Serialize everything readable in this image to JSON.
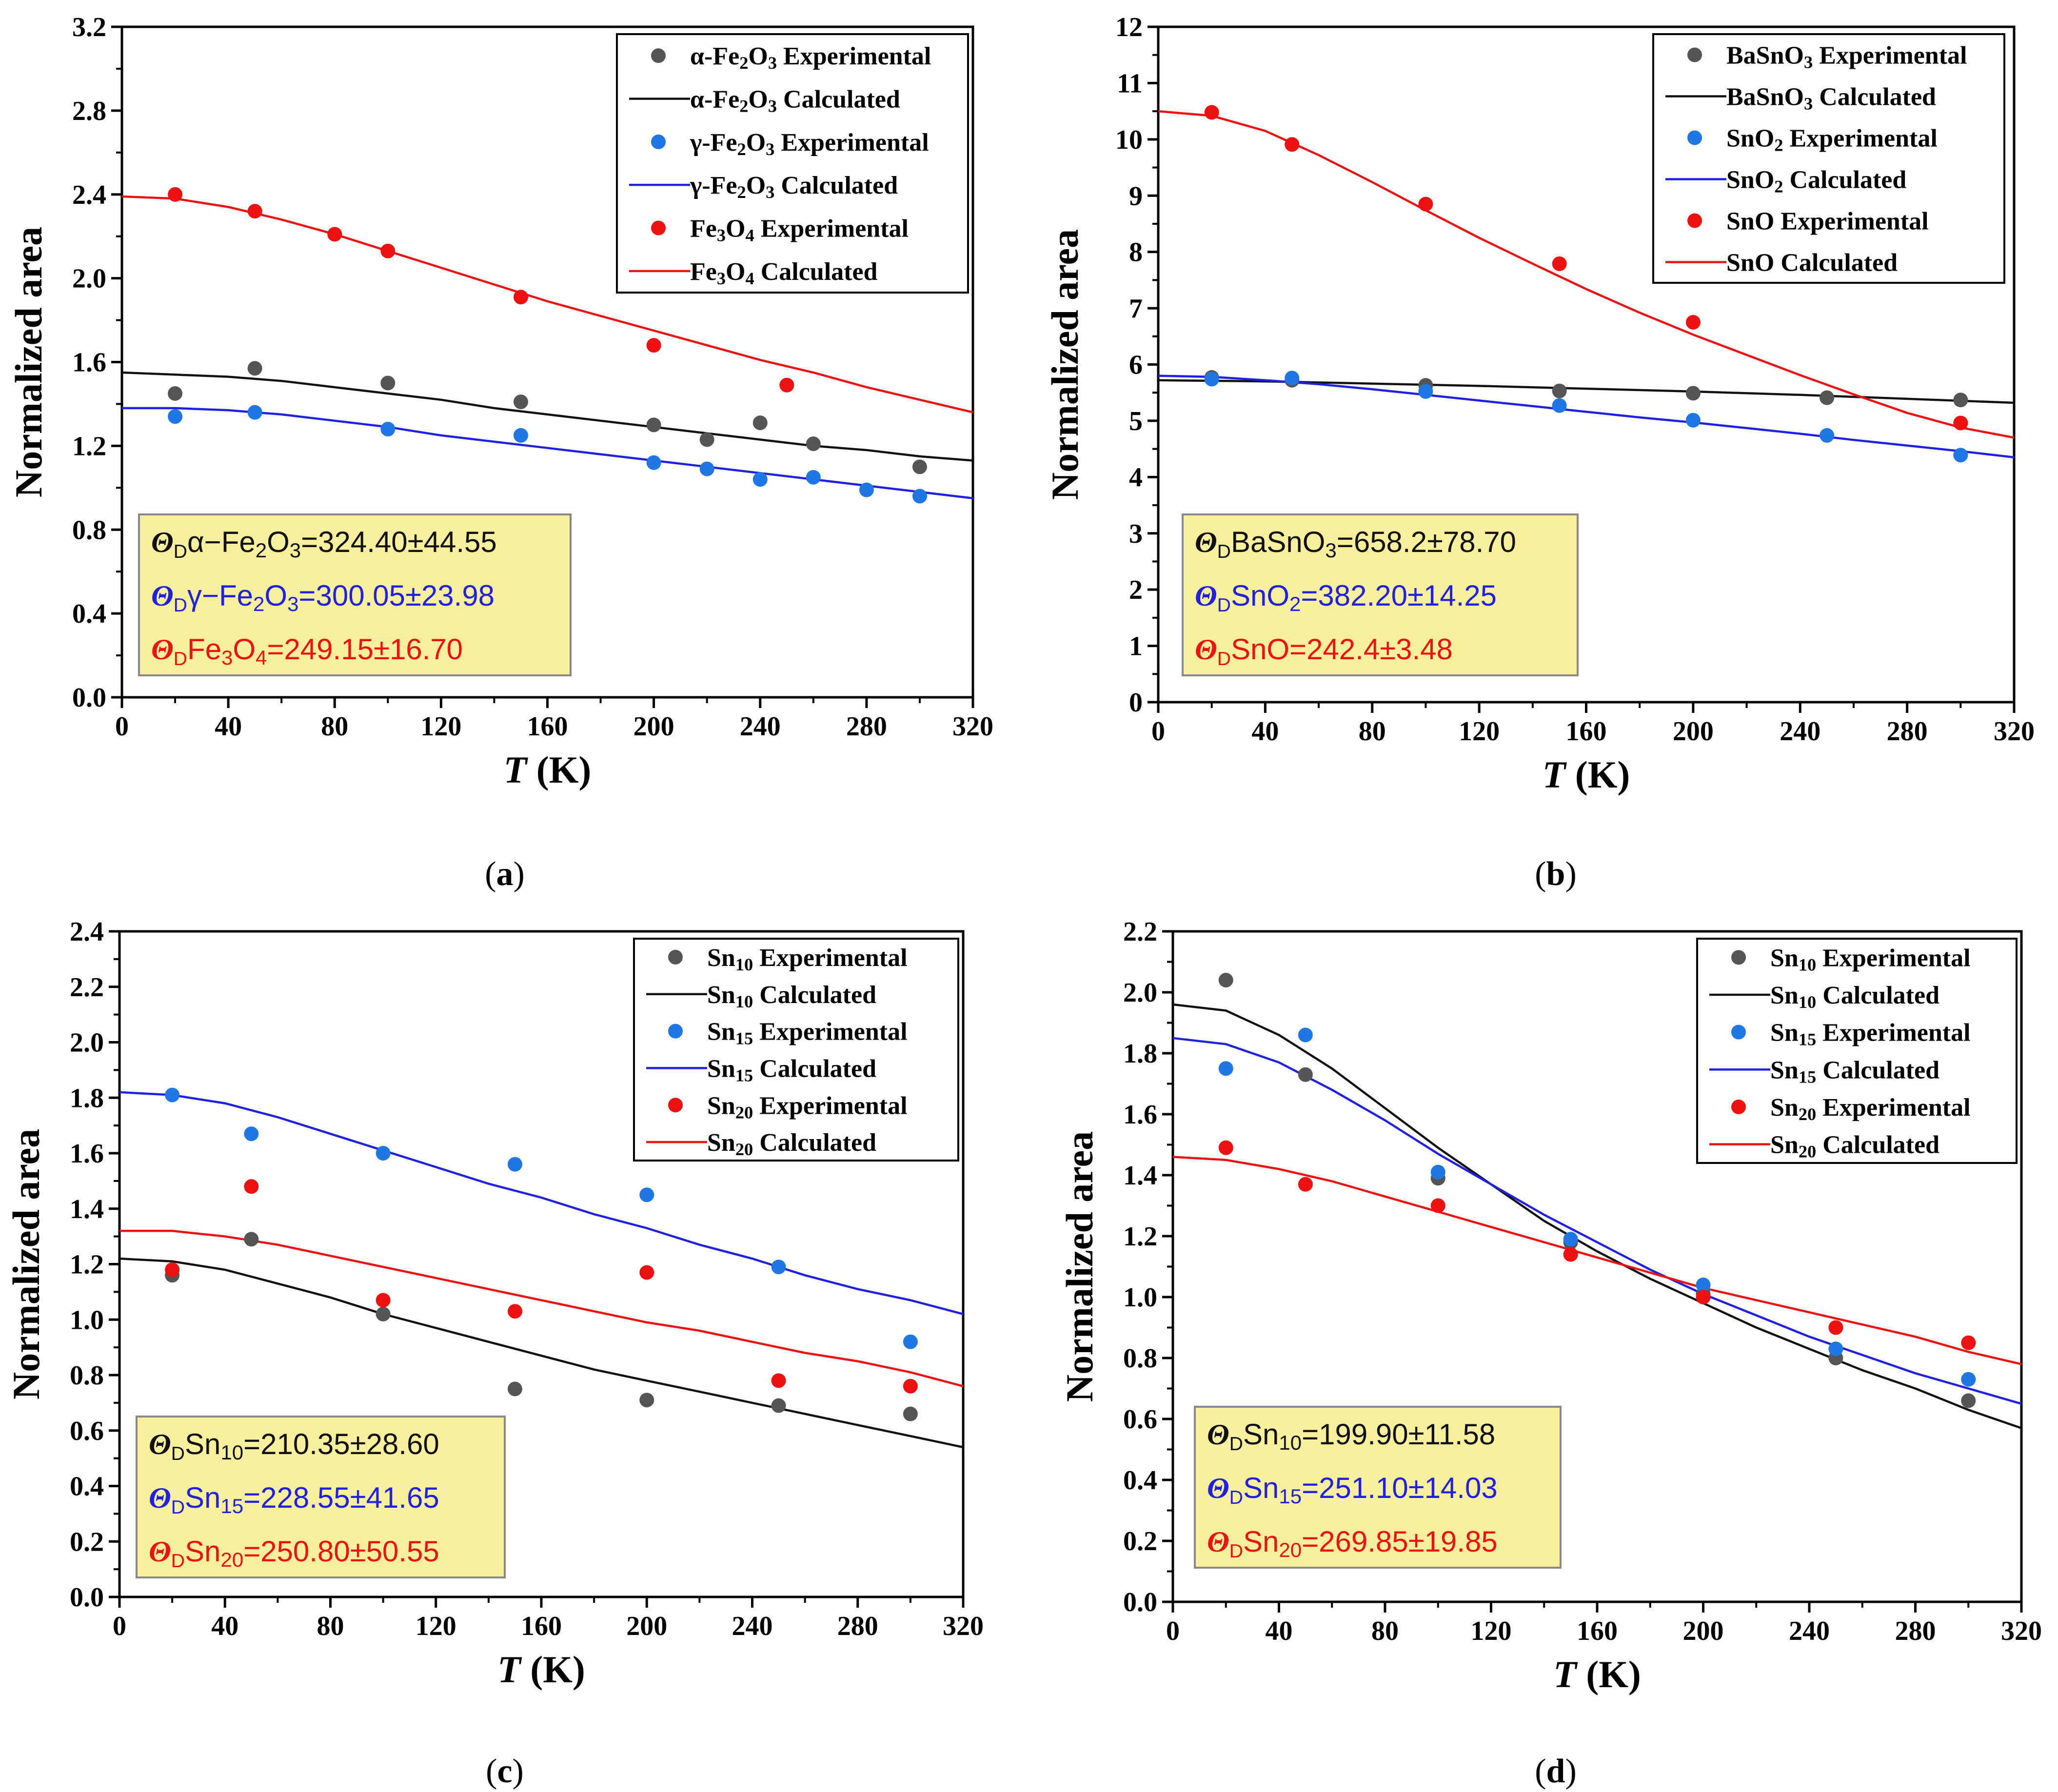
{
  "figure": {
    "panels": [
      "a",
      "b",
      "c",
      "d"
    ]
  },
  "colors": {
    "black_series": "#555555",
    "black_line": "#111111",
    "blue": "#1f77e4",
    "blue_line": "#1f1fe6",
    "red": "#ee1111",
    "annotation_bg": "#f7ef9c"
  },
  "chart_data": [
    {
      "type": "scatter",
      "panel_label": "(a)",
      "xlabel": "T (K)",
      "ylabel": "Normalized area",
      "xlim": [
        0,
        320
      ],
      "ylim": [
        0.0,
        3.2
      ],
      "xticks": [
        "0",
        "40",
        "80",
        "120",
        "160",
        "200",
        "240",
        "280",
        "320"
      ],
      "yticks": [
        "0.0",
        "0.4",
        "0.8",
        "1.2",
        "1.6",
        "2.0",
        "2.4",
        "2.8",
        "3.2"
      ],
      "legend": [
        "α-Fe2O3 Experimental",
        "α-Fe2O3 Calculated",
        "γ-Fe2O3 Experimental",
        "γ-Fe2O3 Calculated",
        "Fe3O4  Experimental",
        "Fe3O4 Calculated"
      ],
      "series": [
        {
          "name": "α-Fe2O3 Experimental",
          "color": "black",
          "x": [
            20,
            50,
            100,
            150,
            200,
            220,
            240,
            260,
            300
          ],
          "y": [
            1.45,
            1.57,
            1.5,
            1.41,
            1.3,
            1.23,
            1.31,
            1.21,
            1.1
          ]
        },
        {
          "name": "α-Fe2O3 Calculated",
          "color": "black",
          "x": [
            0,
            20,
            40,
            60,
            80,
            100,
            120,
            140,
            160,
            180,
            200,
            220,
            240,
            260,
            280,
            300,
            320
          ],
          "y": [
            1.55,
            1.54,
            1.53,
            1.51,
            1.48,
            1.45,
            1.42,
            1.38,
            1.35,
            1.32,
            1.29,
            1.26,
            1.23,
            1.2,
            1.18,
            1.15,
            1.13
          ]
        },
        {
          "name": "γ-Fe2O3 Experimental",
          "color": "blue",
          "x": [
            20,
            50,
            100,
            150,
            200,
            220,
            240,
            260,
            280,
            300
          ],
          "y": [
            1.34,
            1.36,
            1.28,
            1.25,
            1.12,
            1.09,
            1.04,
            1.05,
            0.99,
            0.96
          ]
        },
        {
          "name": "γ-Fe2O3 Calculated",
          "color": "blue",
          "x": [
            0,
            20,
            40,
            60,
            80,
            100,
            120,
            140,
            160,
            180,
            200,
            220,
            240,
            260,
            280,
            300,
            320
          ],
          "y": [
            1.38,
            1.38,
            1.37,
            1.35,
            1.32,
            1.29,
            1.25,
            1.22,
            1.19,
            1.16,
            1.13,
            1.1,
            1.07,
            1.04,
            1.01,
            0.98,
            0.95
          ]
        },
        {
          "name": "Fe3O4  Experimental",
          "color": "red",
          "x": [
            20,
            50,
            80,
            100,
            150,
            200,
            250
          ],
          "y": [
            2.4,
            2.32,
            2.21,
            2.13,
            1.91,
            1.68,
            1.49
          ]
        },
        {
          "name": "Fe3O4 Calculated",
          "color": "red",
          "x": [
            0,
            20,
            40,
            60,
            80,
            100,
            120,
            140,
            160,
            180,
            200,
            220,
            240,
            260,
            280,
            300,
            320
          ],
          "y": [
            2.39,
            2.38,
            2.34,
            2.28,
            2.21,
            2.13,
            2.05,
            1.97,
            1.89,
            1.82,
            1.75,
            1.68,
            1.61,
            1.55,
            1.48,
            1.42,
            1.36
          ]
        }
      ],
      "annotations": [
        {
          "symbol": "Θ",
          "sub": "D",
          "text": "α−Fe2O3=324.40±44.55",
          "color": "black"
        },
        {
          "symbol": "Θ",
          "sub": "D",
          "text": "γ−Fe2O3=300.05±23.98",
          "color": "blue"
        },
        {
          "symbol": "Θ",
          "sub": "D",
          "text": "Fe3O4=249.15±16.70",
          "color": "red"
        }
      ]
    },
    {
      "type": "scatter",
      "panel_label": "(b)",
      "xlabel": "T (K)",
      "ylabel": "Normalized area",
      "xlim": [
        0,
        320
      ],
      "ylim": [
        0,
        12
      ],
      "xticks": [
        "0",
        "40",
        "80",
        "120",
        "160",
        "200",
        "240",
        "280",
        "320"
      ],
      "yticks": [
        "0",
        "1",
        "2",
        "3",
        "4",
        "5",
        "6",
        "7",
        "8",
        "9",
        "10",
        "11",
        "12"
      ],
      "legend": [
        "BaSnO3 Experimental",
        "BaSnO3 Calculated",
        "SnO2 Experimental",
        "SnO2 Calculated",
        "SnO Experimental",
        "SnO Calculated"
      ],
      "series": [
        {
          "name": "BaSnO3 Experimental",
          "color": "black",
          "x": [
            20,
            50,
            100,
            150,
            200,
            250,
            300
          ],
          "y": [
            5.77,
            5.72,
            5.63,
            5.53,
            5.49,
            5.41,
            5.37
          ]
        },
        {
          "name": "BaSnO3 Calculated",
          "color": "black",
          "x": [
            0,
            40,
            80,
            120,
            160,
            200,
            240,
            280,
            320
          ],
          "y": [
            5.72,
            5.7,
            5.66,
            5.62,
            5.57,
            5.52,
            5.46,
            5.39,
            5.32
          ]
        },
        {
          "name": "SnO2 Experimental",
          "color": "blue",
          "x": [
            20,
            50,
            100,
            150,
            200,
            250,
            300
          ],
          "y": [
            5.74,
            5.76,
            5.52,
            5.27,
            5.01,
            4.74,
            4.39
          ]
        },
        {
          "name": "SnO2 Calculated",
          "color": "blue",
          "x": [
            0,
            20,
            40,
            60,
            80,
            100,
            120,
            140,
            160,
            180,
            200,
            220,
            240,
            260,
            280,
            300,
            320
          ],
          "y": [
            5.8,
            5.78,
            5.72,
            5.65,
            5.56,
            5.46,
            5.36,
            5.26,
            5.16,
            5.06,
            4.97,
            4.87,
            4.77,
            4.66,
            4.56,
            4.46,
            4.35
          ]
        },
        {
          "name": "SnO Experimental",
          "color": "red",
          "x": [
            20,
            50,
            100,
            150,
            200,
            300
          ],
          "y": [
            10.48,
            9.91,
            8.85,
            7.79,
            6.75,
            4.96
          ]
        },
        {
          "name": "SnO Calculated",
          "color": "red",
          "x": [
            0,
            20,
            40,
            60,
            80,
            100,
            120,
            140,
            160,
            180,
            200,
            220,
            240,
            260,
            280,
            300,
            320
          ],
          "y": [
            10.5,
            10.42,
            10.15,
            9.72,
            9.24,
            8.74,
            8.25,
            7.79,
            7.34,
            6.92,
            6.53,
            6.17,
            5.81,
            5.47,
            5.14,
            4.88,
            4.7
          ]
        }
      ],
      "annotations": [
        {
          "symbol": "Θ",
          "sub": "D",
          "text": "BaSnO3=658.2±78.70",
          "color": "black"
        },
        {
          "symbol": "Θ",
          "sub": "D",
          "text": "SnO2=382.20±14.25",
          "color": "blue"
        },
        {
          "symbol": "Θ",
          "sub": "D",
          "text": "SnO=242.4±3.48",
          "color": "red"
        }
      ]
    },
    {
      "type": "scatter",
      "panel_label": "(c)",
      "xlabel": "T (K)",
      "ylabel": "Normalized area",
      "xlim": [
        0,
        320
      ],
      "ylim": [
        0.0,
        2.4
      ],
      "xticks": [
        "0",
        "40",
        "80",
        "120",
        "160",
        "200",
        "240",
        "280",
        "320"
      ],
      "yticks": [
        "0.0",
        "0.2",
        "0.4",
        "0.6",
        "0.8",
        "1.0",
        "1.2",
        "1.4",
        "1.6",
        "1.8",
        "2.0",
        "2.2",
        "2.4"
      ],
      "legend": [
        "Sn10 Experimental",
        "Sn10 Calculated",
        "Sn15 Experimental",
        "Sn15 Calculated",
        "Sn20 Experimental",
        "Sn20 Calculated"
      ],
      "series": [
        {
          "name": "Sn10 Experimental",
          "color": "black",
          "x": [
            20,
            50,
            100,
            150,
            200,
            250,
            300
          ],
          "y": [
            1.16,
            1.29,
            1.02,
            0.75,
            0.71,
            0.69,
            0.66
          ]
        },
        {
          "name": "Sn10 Calculated",
          "color": "black",
          "x": [
            0,
            20,
            40,
            60,
            80,
            100,
            120,
            140,
            160,
            180,
            200,
            220,
            240,
            260,
            280,
            300,
            320
          ],
          "y": [
            1.22,
            1.21,
            1.18,
            1.13,
            1.08,
            1.02,
            0.97,
            0.92,
            0.87,
            0.82,
            0.78,
            0.74,
            0.7,
            0.66,
            0.62,
            0.58,
            0.54
          ]
        },
        {
          "name": "Sn15 Experimental",
          "color": "blue",
          "x": [
            20,
            50,
            100,
            150,
            200,
            250,
            300
          ],
          "y": [
            1.81,
            1.67,
            1.6,
            1.56,
            1.45,
            1.19,
            0.92
          ]
        },
        {
          "name": "Sn15 Calculated",
          "color": "blue",
          "x": [
            0,
            20,
            40,
            60,
            80,
            100,
            120,
            140,
            160,
            180,
            200,
            220,
            240,
            260,
            280,
            300,
            320
          ],
          "y": [
            1.82,
            1.81,
            1.78,
            1.73,
            1.67,
            1.61,
            1.55,
            1.49,
            1.44,
            1.38,
            1.33,
            1.27,
            1.22,
            1.16,
            1.11,
            1.07,
            1.02
          ]
        },
        {
          "name": "Sn20 Experimental",
          "color": "red",
          "x": [
            20,
            50,
            100,
            150,
            200,
            250,
            300
          ],
          "y": [
            1.18,
            1.48,
            1.07,
            1.03,
            1.17,
            0.78,
            0.76
          ]
        },
        {
          "name": "Sn20 Calculated",
          "color": "red",
          "x": [
            0,
            20,
            40,
            60,
            80,
            100,
            120,
            140,
            160,
            180,
            200,
            220,
            240,
            260,
            280,
            300,
            320
          ],
          "y": [
            1.32,
            1.32,
            1.3,
            1.27,
            1.23,
            1.19,
            1.15,
            1.11,
            1.07,
            1.03,
            0.99,
            0.96,
            0.92,
            0.88,
            0.85,
            0.81,
            0.76
          ]
        }
      ],
      "annotations": [
        {
          "symbol": "Θ",
          "sub": "D",
          "text": "Sn10=210.35±28.60",
          "color": "black"
        },
        {
          "symbol": "Θ",
          "sub": "D",
          "text": "Sn15=228.55±41.65",
          "color": "blue"
        },
        {
          "symbol": "Θ",
          "sub": "D",
          "text": "Sn20=250.80±50.55",
          "color": "red"
        }
      ]
    },
    {
      "type": "scatter",
      "panel_label": "(d)",
      "xlabel": "T (K)",
      "ylabel": "Normalized area",
      "xlim": [
        0,
        320
      ],
      "ylim": [
        0.0,
        2.2
      ],
      "xticks": [
        "0",
        "40",
        "80",
        "120",
        "160",
        "200",
        "240",
        "280",
        "320"
      ],
      "yticks": [
        "0.0",
        "0.2",
        "0.4",
        "0.6",
        "0.8",
        "1.0",
        "1.2",
        "1.4",
        "1.6",
        "1.8",
        "2.0",
        "2.2"
      ],
      "legend": [
        "Sn10 Experimental",
        "Sn10 Calculated",
        "Sn15 Experimental",
        "Sn15 Calculated",
        "Sn20 Experimental",
        "Sn20 Calculated"
      ],
      "series": [
        {
          "name": "Sn10 Experimental",
          "color": "black",
          "x": [
            20,
            50,
            100,
            150,
            200,
            250,
            300
          ],
          "y": [
            2.04,
            1.73,
            1.39,
            1.18,
            1.01,
            0.8,
            0.66
          ]
        },
        {
          "name": "Sn10 Calculated",
          "color": "black",
          "x": [
            0,
            20,
            40,
            60,
            80,
            100,
            120,
            140,
            160,
            180,
            200,
            220,
            240,
            260,
            280,
            300,
            320
          ],
          "y": [
            1.96,
            1.94,
            1.86,
            1.75,
            1.62,
            1.49,
            1.37,
            1.25,
            1.15,
            1.06,
            0.98,
            0.9,
            0.83,
            0.76,
            0.7,
            0.63,
            0.57
          ]
        },
        {
          "name": "Sn15 Experimental",
          "color": "blue",
          "x": [
            20,
            50,
            100,
            150,
            200,
            250,
            300
          ],
          "y": [
            1.75,
            1.86,
            1.41,
            1.19,
            1.04,
            0.83,
            0.73
          ]
        },
        {
          "name": "Sn15 Calculated",
          "color": "blue",
          "x": [
            0,
            20,
            40,
            60,
            80,
            100,
            120,
            140,
            160,
            180,
            200,
            220,
            240,
            260,
            280,
            300,
            320
          ],
          "y": [
            1.85,
            1.83,
            1.77,
            1.68,
            1.58,
            1.47,
            1.37,
            1.27,
            1.18,
            1.09,
            1.01,
            0.94,
            0.87,
            0.81,
            0.75,
            0.7,
            0.65
          ]
        },
        {
          "name": "Sn20 Experimental",
          "color": "red",
          "x": [
            20,
            50,
            100,
            150,
            200,
            250,
            300
          ],
          "y": [
            1.49,
            1.37,
            1.3,
            1.14,
            1.0,
            0.9,
            0.85
          ]
        },
        {
          "name": "Sn20 Calculated",
          "color": "red",
          "x": [
            0,
            20,
            40,
            60,
            80,
            100,
            120,
            140,
            160,
            180,
            200,
            220,
            240,
            260,
            280,
            300,
            320
          ],
          "y": [
            1.46,
            1.45,
            1.42,
            1.38,
            1.33,
            1.28,
            1.23,
            1.18,
            1.13,
            1.08,
            1.03,
            0.99,
            0.95,
            0.91,
            0.87,
            0.82,
            0.78
          ]
        }
      ],
      "annotations": [
        {
          "symbol": "Θ",
          "sub": "D",
          "text": "Sn10=199.90±11.58",
          "color": "black"
        },
        {
          "symbol": "Θ",
          "sub": "D",
          "text": "Sn15=251.10±14.03",
          "color": "blue"
        },
        {
          "symbol": "Θ",
          "sub": "D",
          "text": "Sn20=269.85±19.85",
          "color": "red"
        }
      ]
    }
  ]
}
